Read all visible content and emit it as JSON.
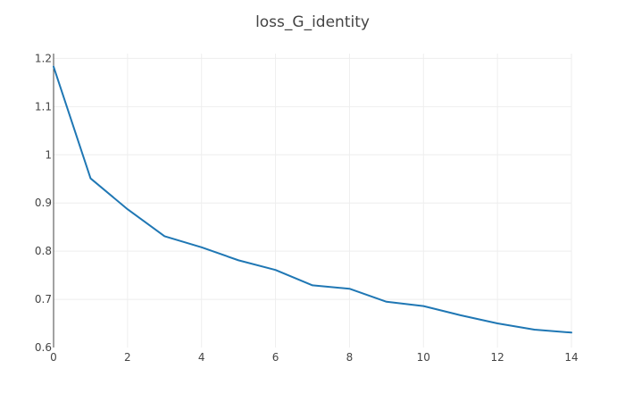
{
  "chart_data": {
    "type": "line",
    "title": "loss_G_identity",
    "xlabel": "",
    "ylabel": "",
    "xlim": [
      0,
      14
    ],
    "ylim": [
      0.6,
      1.21
    ],
    "x_ticks": [
      0,
      2,
      4,
      6,
      8,
      10,
      12,
      14
    ],
    "y_ticks": [
      0.6,
      0.7,
      0.8,
      0.9,
      1,
      1.1,
      1.2
    ],
    "x_tick_labels": [
      "0",
      "2",
      "4",
      "6",
      "8",
      "10",
      "12",
      "14"
    ],
    "y_tick_labels": [
      "0.6",
      "0.7",
      "0.8",
      "0.9",
      "1",
      "1.1",
      "1.2"
    ],
    "grid": true,
    "line_color": "#1f77b4",
    "series": [
      {
        "x": [
          0,
          1,
          2,
          3,
          4,
          5,
          6,
          7,
          8,
          9,
          10,
          11,
          12,
          13,
          14
        ],
        "values": [
          1.183,
          0.951,
          0.887,
          0.831,
          0.808,
          0.781,
          0.761,
          0.729,
          0.722,
          0.695,
          0.686,
          0.667,
          0.65,
          0.637,
          0.631
        ]
      }
    ]
  }
}
